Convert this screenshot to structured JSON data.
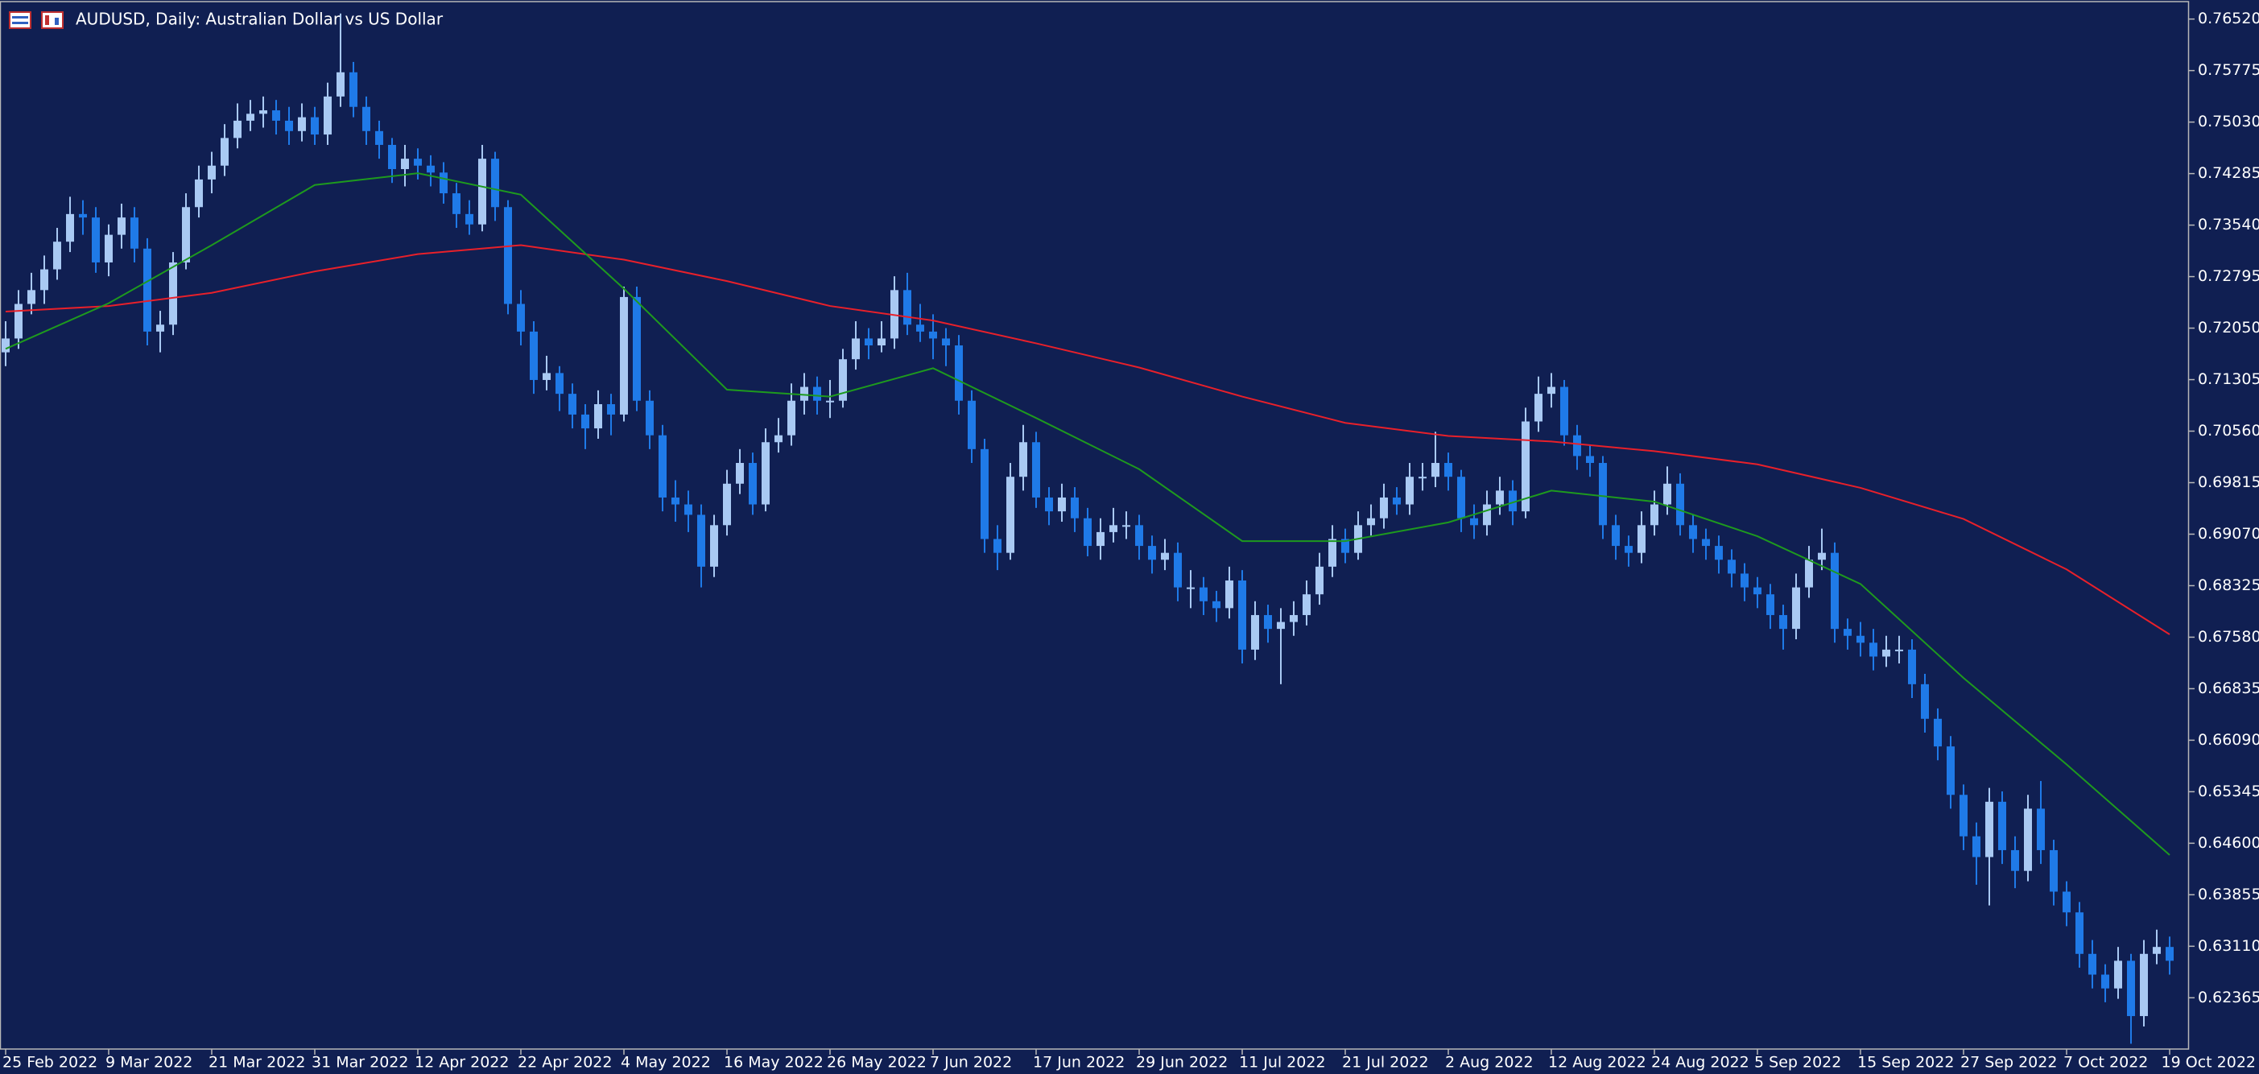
{
  "chart_data": {
    "type": "candlestick",
    "title": "AUDUSD, Daily:  Australian Dollar vs US Dollar",
    "up_color": "#a9c9f3",
    "down_color": "#1f7ae8",
    "ylim": [
      0.61635,
      0.76749
    ],
    "yticks": [
      {
        "value": 0.7652,
        "label": "0.76520"
      },
      0.75775,
      {
        "value": 0.7503,
        "label": "0.75030"
      },
      0.74285,
      {
        "value": 0.7354,
        "label": "0.73540"
      },
      0.72795,
      {
        "value": 0.7205,
        "label": "0.72050"
      },
      0.71305,
      {
        "value": 0.7056,
        "label": "0.70560"
      },
      0.69815,
      {
        "value": 0.6907,
        "label": "0.69070"
      },
      0.68325,
      {
        "value": 0.6758,
        "label": "0.67580"
      },
      0.66835,
      {
        "value": 0.6609,
        "label": "0.66090"
      },
      0.65345,
      {
        "value": 0.646,
        "label": "0.64600"
      },
      0.63855,
      {
        "value": 0.6311,
        "label": "0.63110"
      },
      0.62365
    ],
    "categories": [
      "25 Feb 2022",
      null,
      null,
      null,
      null,
      null,
      null,
      null,
      "9 Mar 2022",
      null,
      null,
      null,
      null,
      null,
      null,
      null,
      "21 Mar 2022",
      null,
      null,
      null,
      null,
      null,
      null,
      null,
      "31 Mar 2022",
      null,
      null,
      null,
      null,
      null,
      null,
      null,
      "12 Apr 2022",
      null,
      null,
      null,
      null,
      null,
      null,
      null,
      "22 Apr 2022",
      null,
      null,
      null,
      null,
      null,
      null,
      null,
      "4 May 2022",
      null,
      null,
      null,
      null,
      null,
      null,
      null,
      "16 May 2022",
      null,
      null,
      null,
      null,
      null,
      null,
      null,
      "26 May 2022",
      null,
      null,
      null,
      null,
      null,
      null,
      null,
      "7 Jun 2022",
      null,
      null,
      null,
      null,
      null,
      null,
      null,
      "17 Jun 2022",
      null,
      null,
      null,
      null,
      null,
      null,
      null,
      "29 Jun 2022",
      null,
      null,
      null,
      null,
      null,
      null,
      null,
      "11 Jul 2022",
      null,
      null,
      null,
      null,
      null,
      null,
      null,
      "21 Jul 2022",
      null,
      null,
      null,
      null,
      null,
      null,
      null,
      "2 Aug 2022",
      null,
      null,
      null,
      null,
      null,
      null,
      null,
      "12 Aug 2022",
      null,
      null,
      null,
      null,
      null,
      null,
      null,
      "24 Aug 2022",
      null,
      null,
      null,
      null,
      null,
      null,
      null,
      "5 Sep 2022",
      null,
      null,
      null,
      null,
      null,
      null,
      null,
      "15 Sep 2022",
      null,
      null,
      null,
      null,
      null,
      null,
      null,
      "27 Sep 2022",
      null,
      null,
      null,
      null,
      null,
      null,
      null,
      "7 Oct 2022",
      null,
      null,
      null,
      null,
      null,
      null,
      null,
      "19 Oct 2022"
    ],
    "open": [
      0.717,
      0.719,
      0.724,
      0.726,
      0.729,
      0.733,
      0.737,
      0.7365,
      0.73,
      0.734,
      0.7365,
      0.732,
      0.72,
      0.721,
      0.73,
      0.738,
      0.742,
      0.744,
      0.748,
      0.7505,
      0.7515,
      0.752,
      0.7505,
      0.749,
      0.751,
      0.7485,
      0.754,
      0.7575,
      0.7525,
      0.749,
      0.747,
      0.7435,
      0.745,
      0.744,
      0.743,
      0.74,
      0.737,
      0.7355,
      0.745,
      0.738,
      0.724,
      0.72,
      0.713,
      0.714,
      0.711,
      0.708,
      0.706,
      0.7095,
      0.708,
      0.725,
      0.71,
      0.705,
      0.696,
      0.695,
      0.6935,
      0.686,
      0.692,
      0.698,
      0.701,
      0.695,
      0.704,
      0.705,
      0.71,
      0.712,
      0.71,
      0.71,
      0.716,
      0.719,
      0.718,
      0.719,
      0.726,
      0.721,
      0.72,
      0.719,
      0.718,
      0.71,
      0.703,
      0.69,
      0.688,
      0.699,
      0.704,
      0.696,
      0.694,
      0.696,
      0.693,
      0.689,
      0.691,
      0.692,
      0.692,
      0.689,
      0.687,
      0.688,
      0.683,
      0.683,
      0.681,
      0.68,
      0.684,
      0.674,
      0.679,
      0.677,
      0.678,
      0.679,
      0.682,
      0.686,
      0.69,
      0.688,
      0.692,
      0.693,
      0.696,
      0.695,
      0.699,
      0.699,
      0.701,
      0.699,
      0.693,
      0.692,
      0.695,
      0.697,
      0.694,
      0.707,
      0.711,
      0.712,
      0.705,
      0.702,
      0.701,
      0.692,
      0.689,
      0.688,
      0.692,
      0.695,
      0.698,
      0.692,
      0.69,
      0.689,
      0.687,
      0.685,
      0.683,
      0.682,
      0.679,
      0.677,
      0.683,
      0.687,
      0.688,
      0.677,
      0.676,
      0.675,
      0.673,
      0.674,
      0.674,
      0.669,
      0.664,
      0.66,
      0.653,
      0.647,
      0.644,
      0.652,
      0.645,
      0.642,
      0.651,
      0.645,
      0.639,
      0.636,
      0.63,
      0.627,
      0.625,
      0.629,
      0.621,
      0.63,
      0.631
    ],
    "high": [
      0.7215,
      0.726,
      0.7285,
      0.731,
      0.735,
      0.7395,
      0.739,
      0.738,
      0.7355,
      0.7385,
      0.738,
      0.7335,
      0.723,
      0.7315,
      0.74,
      0.744,
      0.746,
      0.75,
      0.753,
      0.7535,
      0.754,
      0.7535,
      0.7525,
      0.753,
      0.7525,
      0.756,
      0.766,
      0.759,
      0.754,
      0.7505,
      0.748,
      0.747,
      0.7465,
      0.7455,
      0.7445,
      0.7415,
      0.739,
      0.747,
      0.746,
      0.739,
      0.726,
      0.7215,
      0.7165,
      0.715,
      0.7125,
      0.7095,
      0.7115,
      0.711,
      0.7265,
      0.7265,
      0.7115,
      0.7065,
      0.6985,
      0.697,
      0.695,
      0.6935,
      0.7,
      0.703,
      0.7025,
      0.706,
      0.7075,
      0.7125,
      0.714,
      0.7135,
      0.713,
      0.7175,
      0.7215,
      0.7205,
      0.7215,
      0.728,
      0.7285,
      0.724,
      0.7225,
      0.7205,
      0.7195,
      0.7115,
      0.7045,
      0.692,
      0.701,
      0.7065,
      0.7055,
      0.6975,
      0.698,
      0.6975,
      0.6945,
      0.693,
      0.6945,
      0.694,
      0.6935,
      0.6905,
      0.69,
      0.6895,
      0.6855,
      0.6845,
      0.6825,
      0.686,
      0.6855,
      0.681,
      0.6805,
      0.68,
      0.681,
      0.684,
      0.688,
      0.692,
      0.6915,
      0.694,
      0.695,
      0.698,
      0.6975,
      0.701,
      0.701,
      0.7055,
      0.7025,
      0.7,
      0.695,
      0.697,
      0.699,
      0.6985,
      0.709,
      0.7135,
      0.714,
      0.713,
      0.7065,
      0.7035,
      0.702,
      0.6935,
      0.6905,
      0.694,
      0.697,
      0.7005,
      0.6995,
      0.6935,
      0.6915,
      0.6905,
      0.6885,
      0.6865,
      0.6845,
      0.6835,
      0.6805,
      0.685,
      0.689,
      0.6915,
      0.6895,
      0.6785,
      0.678,
      0.677,
      0.676,
      0.676,
      0.6755,
      0.6705,
      0.6655,
      0.6615,
      0.6545,
      0.649,
      0.654,
      0.6535,
      0.647,
      0.653,
      0.655,
      0.6465,
      0.6405,
      0.6375,
      0.632,
      0.6285,
      0.631,
      0.63,
      0.632,
      0.6335,
      0.6325
    ],
    "low": [
      0.715,
      0.7175,
      0.7225,
      0.724,
      0.7275,
      0.7315,
      0.734,
      0.7285,
      0.728,
      0.732,
      0.73,
      0.718,
      0.717,
      0.7195,
      0.729,
      0.7365,
      0.74,
      0.7425,
      0.7465,
      0.749,
      0.7495,
      0.7485,
      0.747,
      0.7475,
      0.747,
      0.747,
      0.7525,
      0.751,
      0.747,
      0.745,
      0.7415,
      0.741,
      0.742,
      0.741,
      0.7385,
      0.735,
      0.734,
      0.7345,
      0.736,
      0.7225,
      0.718,
      0.711,
      0.7115,
      0.7085,
      0.706,
      0.703,
      0.7045,
      0.705,
      0.707,
      0.7085,
      0.703,
      0.694,
      0.6925,
      0.691,
      0.683,
      0.6845,
      0.6905,
      0.6965,
      0.6935,
      0.694,
      0.7025,
      0.7035,
      0.708,
      0.708,
      0.7075,
      0.709,
      0.7145,
      0.716,
      0.717,
      0.7175,
      0.7195,
      0.7185,
      0.716,
      0.715,
      0.708,
      0.701,
      0.688,
      0.6855,
      0.687,
      0.697,
      0.6945,
      0.692,
      0.6925,
      0.691,
      0.6875,
      0.687,
      0.6895,
      0.69,
      0.687,
      0.685,
      0.6855,
      0.681,
      0.68,
      0.679,
      0.678,
      0.6785,
      0.672,
      0.6725,
      0.675,
      0.669,
      0.676,
      0.6775,
      0.6805,
      0.6845,
      0.6865,
      0.687,
      0.6905,
      0.6915,
      0.6935,
      0.6935,
      0.697,
      0.6975,
      0.697,
      0.691,
      0.69,
      0.6905,
      0.6935,
      0.692,
      0.693,
      0.7055,
      0.709,
      0.7035,
      0.7,
      0.699,
      0.69,
      0.687,
      0.686,
      0.6865,
      0.6905,
      0.6935,
      0.6905,
      0.688,
      0.687,
      0.685,
      0.683,
      0.681,
      0.68,
      0.677,
      0.674,
      0.6755,
      0.6815,
      0.6855,
      0.675,
      0.674,
      0.673,
      0.671,
      0.6715,
      0.672,
      0.667,
      0.662,
      0.658,
      0.651,
      0.645,
      0.64,
      0.637,
      0.643,
      0.6395,
      0.6405,
      0.643,
      0.637,
      0.634,
      0.628,
      0.625,
      0.623,
      0.6235,
      0.617,
      0.6195,
      0.6285,
      0.627
    ],
    "close": [
      0.719,
      0.724,
      0.726,
      0.729,
      0.733,
      0.737,
      0.7365,
      0.73,
      0.734,
      0.7365,
      0.732,
      0.72,
      0.721,
      0.73,
      0.738,
      0.742,
      0.744,
      0.748,
      0.7505,
      0.7515,
      0.752,
      0.7505,
      0.749,
      0.751,
      0.7485,
      0.754,
      0.7575,
      0.7525,
      0.749,
      0.747,
      0.7435,
      0.745,
      0.744,
      0.743,
      0.74,
      0.737,
      0.7355,
      0.745,
      0.738,
      0.724,
      0.72,
      0.713,
      0.714,
      0.711,
      0.708,
      0.706,
      0.7095,
      0.708,
      0.725,
      0.71,
      0.705,
      0.696,
      0.695,
      0.6935,
      0.686,
      0.692,
      0.698,
      0.701,
      0.695,
      0.704,
      0.705,
      0.71,
      0.712,
      0.71,
      0.71,
      0.716,
      0.719,
      0.718,
      0.719,
      0.726,
      0.721,
      0.72,
      0.719,
      0.718,
      0.71,
      0.703,
      0.69,
      0.688,
      0.699,
      0.704,
      0.696,
      0.694,
      0.696,
      0.693,
      0.689,
      0.691,
      0.692,
      0.692,
      0.689,
      0.687,
      0.688,
      0.683,
      0.683,
      0.681,
      0.68,
      0.684,
      0.674,
      0.679,
      0.677,
      0.678,
      0.679,
      0.682,
      0.686,
      0.69,
      0.688,
      0.692,
      0.693,
      0.696,
      0.695,
      0.699,
      0.699,
      0.701,
      0.699,
      0.693,
      0.692,
      0.695,
      0.697,
      0.694,
      0.707,
      0.711,
      0.712,
      0.705,
      0.702,
      0.701,
      0.692,
      0.689,
      0.688,
      0.692,
      0.695,
      0.698,
      0.692,
      0.69,
      0.689,
      0.687,
      0.685,
      0.683,
      0.682,
      0.679,
      0.677,
      0.683,
      0.687,
      0.688,
      0.677,
      0.676,
      0.675,
      0.673,
      0.674,
      0.674,
      0.669,
      0.664,
      0.66,
      0.653,
      0.647,
      0.644,
      0.652,
      0.645,
      0.642,
      0.651,
      0.645,
      0.639,
      0.636,
      0.63,
      0.627,
      0.625,
      0.629,
      0.621,
      0.63,
      0.631,
      0.629
    ],
    "moving_averages": [
      {
        "color": "#e8202a",
        "x": [
          0,
          8,
          16,
          24,
          32,
          40,
          48,
          56,
          64,
          72,
          80,
          88,
          96,
          104,
          112,
          120,
          128,
          136,
          144,
          152,
          160,
          168
        ],
        "values": [
          0.7229,
          0.7237,
          0.7256,
          0.7287,
          0.7312,
          0.7325,
          0.7304,
          0.7273,
          0.7237,
          0.7216,
          0.7183,
          0.7148,
          0.7106,
          0.7068,
          0.7049,
          0.7041,
          0.7027,
          0.7008,
          0.6974,
          0.6929,
          0.6856,
          0.6762
        ]
      },
      {
        "color": "#1e9a1e",
        "x": [
          0,
          8,
          16,
          24,
          32,
          40,
          48,
          56,
          64,
          72,
          80,
          88,
          96,
          104,
          112,
          120,
          128,
          136,
          144,
          152,
          160,
          168
        ],
        "values": [
          0.7175,
          0.7241,
          0.7325,
          0.7412,
          0.7429,
          0.7398,
          0.7262,
          0.7116,
          0.7106,
          0.7147,
          0.7075,
          0.7001,
          0.6897,
          0.6897,
          0.6924,
          0.697,
          0.6954,
          0.6904,
          0.6835,
          0.6699,
          0.6574,
          0.6443
        ]
      }
    ]
  }
}
